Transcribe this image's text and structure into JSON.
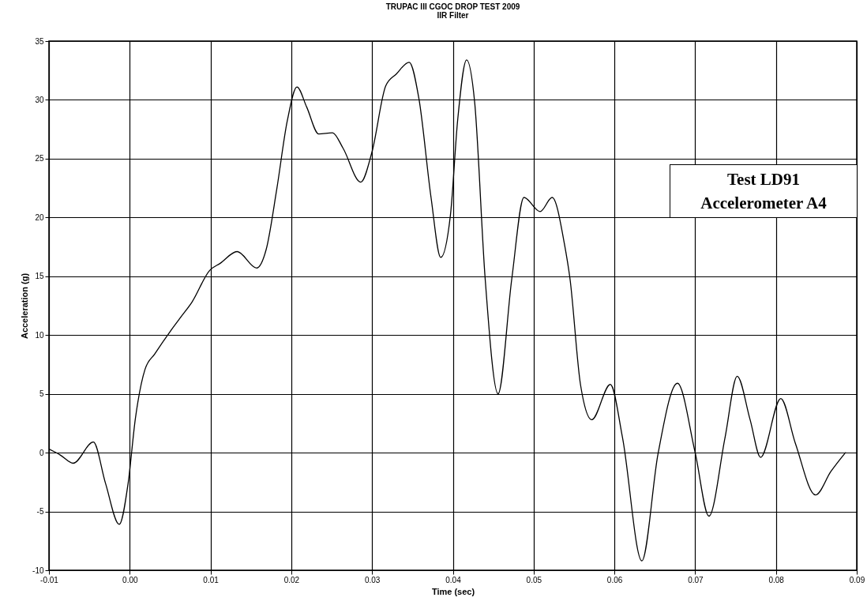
{
  "chart_data": {
    "type": "line",
    "title": "TRUPAC III CGOC DROP TEST 2009",
    "subtitle": "IIR Filter",
    "xlabel": "Time (sec)",
    "ylabel": "Acceleration (g)",
    "annotations": [
      "Test LD91",
      "Accelerometer A4"
    ],
    "x": [
      -0.01,
      -0.0086,
      -0.007,
      -0.0045,
      -0.003,
      -0.0013,
      -0.0002,
      0.0007,
      0.0019,
      0.0031,
      0.0051,
      0.0064,
      0.0077,
      0.0099,
      0.0112,
      0.0133,
      0.0157,
      0.0169,
      0.0182,
      0.0195,
      0.0207,
      0.0219,
      0.0234,
      0.0251,
      0.0264,
      0.0286,
      0.03,
      0.0317,
      0.033,
      0.0346,
      0.0358,
      0.0373,
      0.0385,
      0.0397,
      0.0406,
      0.0417,
      0.0427,
      0.044,
      0.0456,
      0.0473,
      0.0488,
      0.0508,
      0.0523,
      0.0538,
      0.0545,
      0.0558,
      0.0572,
      0.0595,
      0.061,
      0.0634,
      0.0654,
      0.0678,
      0.07,
      0.0717,
      0.0737,
      0.0752,
      0.0768,
      0.0781,
      0.0806,
      0.0824,
      0.0849,
      0.0868,
      0.0886
    ],
    "series": [
      {
        "color": "#000000",
        "values": [
          0.3,
          -0.2,
          -0.9,
          0.9,
          -2.6,
          -6.1,
          -2.6,
          2.9,
          7.1,
          8.4,
          10.4,
          11.6,
          12.8,
          15.5,
          16.1,
          17.1,
          15.7,
          17.3,
          22.4,
          28.2,
          31.1,
          29.4,
          27.1,
          27.2,
          25.9,
          23.0,
          25.6,
          31.2,
          32.2,
          33.2,
          30.1,
          21.7,
          16.6,
          20.2,
          28.3,
          33.4,
          29.8,
          14.8,
          5.0,
          14.8,
          21.7,
          20.5,
          21.7,
          17.8,
          14.8,
          5.8,
          2.8,
          5.8,
          1.3,
          -9.2,
          -0.1,
          5.9,
          0.0,
          -5.4,
          1.3,
          6.5,
          2.8,
          -0.4,
          4.6,
          0.8,
          -3.6,
          -1.6,
          0.0
        ]
      }
    ],
    "xlim": [
      -0.01,
      0.09
    ],
    "ylim": [
      -10,
      35
    ],
    "xticks": [
      {
        "value": -0.01,
        "label": "-0.01"
      },
      {
        "value": 0,
        "label": "0.00"
      },
      {
        "value": 0.01,
        "label": "0.01"
      },
      {
        "value": 0.02,
        "label": "0.02"
      },
      {
        "value": 0.03,
        "label": "0.03"
      },
      {
        "value": 0.04,
        "label": "0.04"
      },
      {
        "value": 0.05,
        "label": "0.05"
      },
      {
        "value": 0.06,
        "label": "0.06"
      },
      {
        "value": 0.07,
        "label": "0.07"
      },
      {
        "value": 0.08,
        "label": "0.08"
      },
      {
        "value": 0.09,
        "label": "0.09"
      }
    ],
    "yticks": [
      -10,
      -5,
      0,
      5,
      10,
      15,
      20,
      25,
      30,
      35
    ],
    "grid": true,
    "marker": "none",
    "line_style": "solid"
  }
}
